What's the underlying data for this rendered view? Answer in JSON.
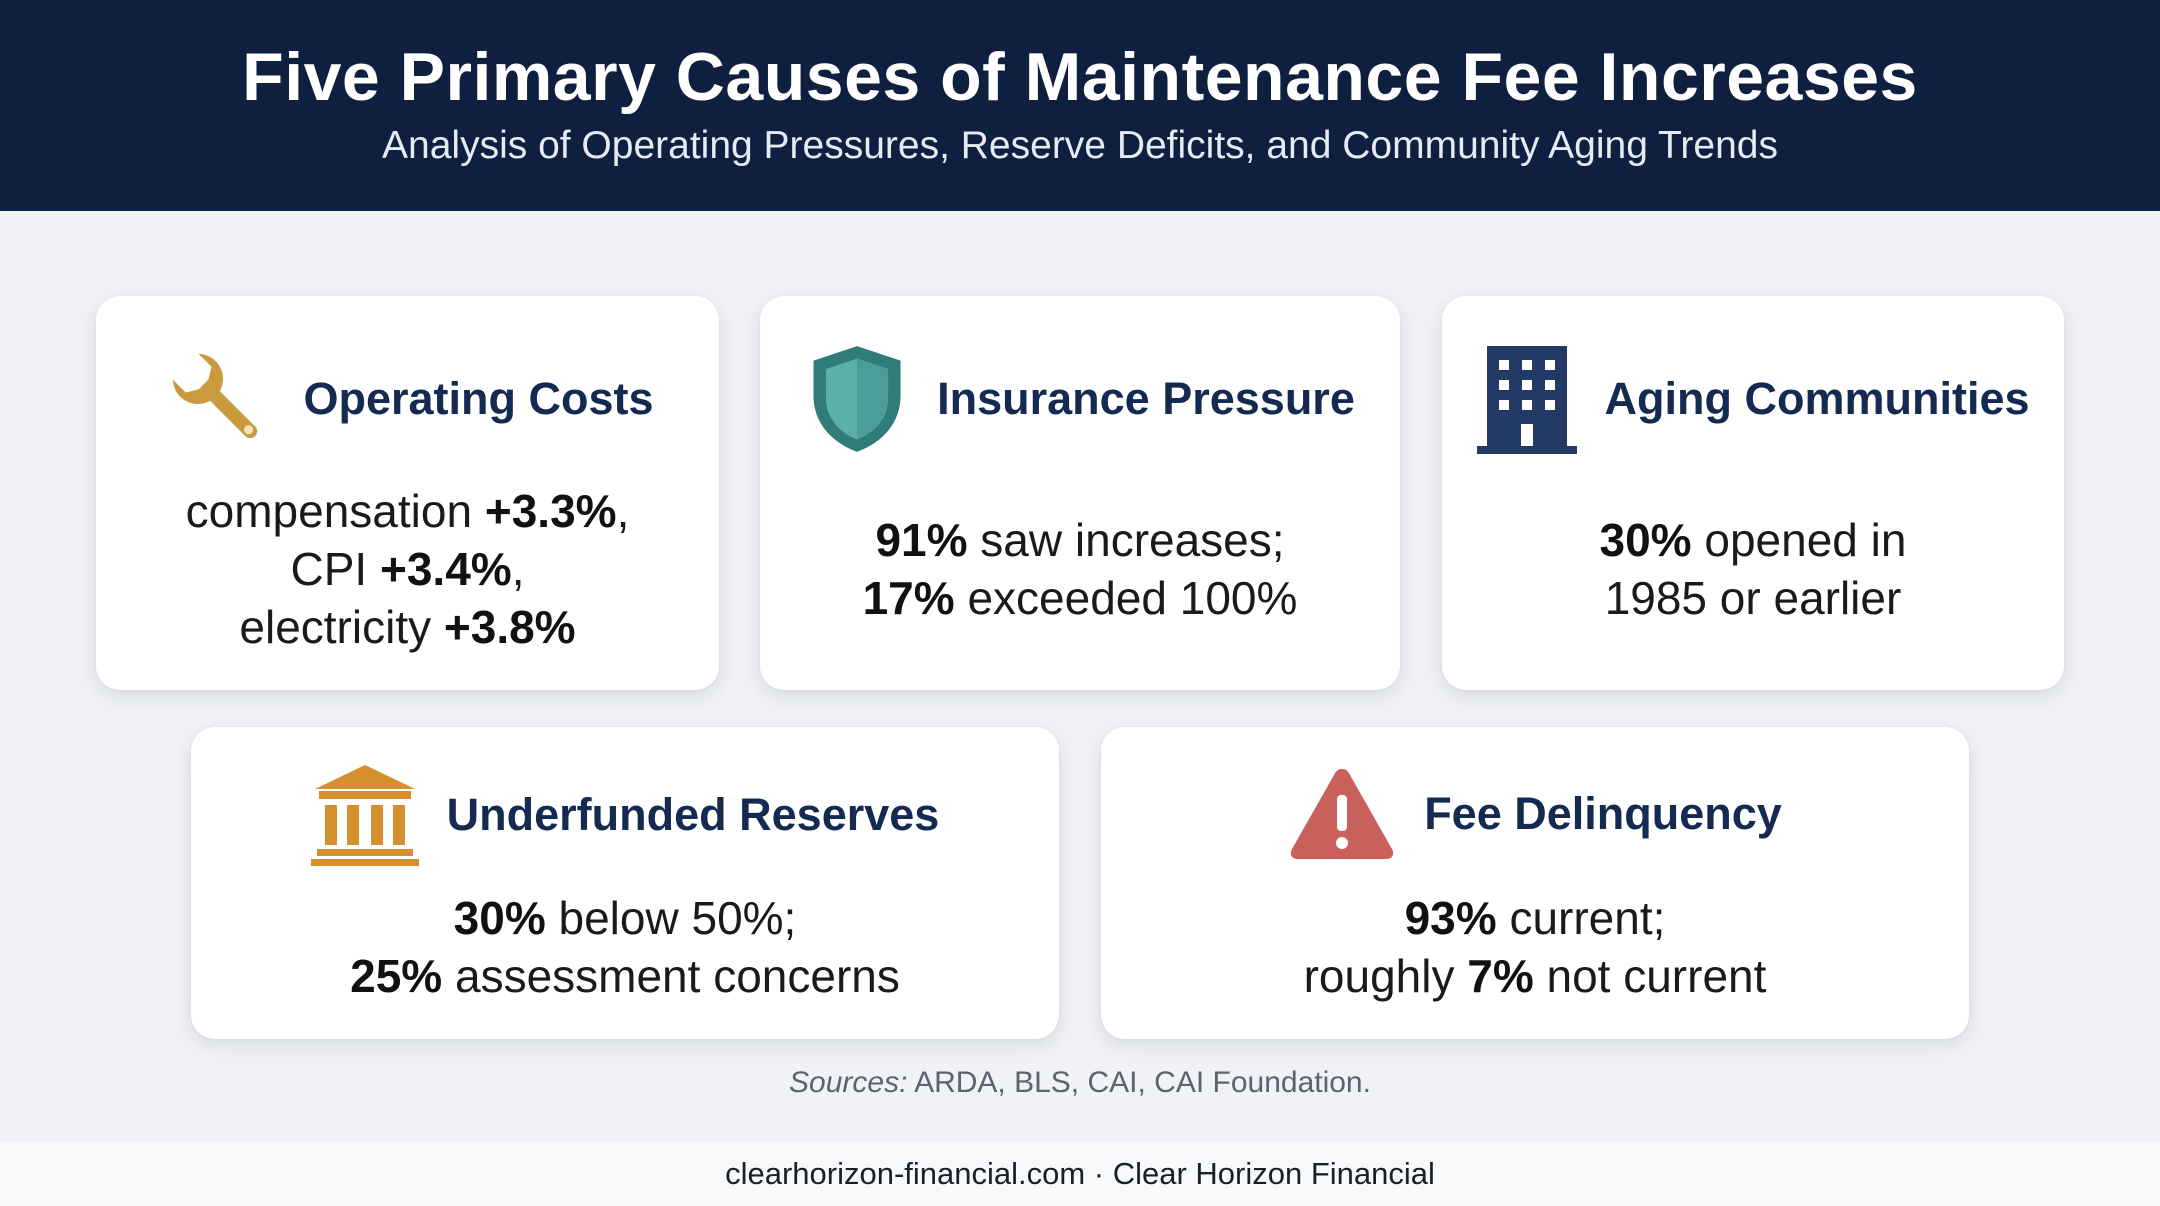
{
  "header": {
    "title": "Five Primary Causes of Maintenance Fee Increases",
    "subtitle": "Analysis of Operating Pressures, Reserve Deficits, and Community Aging Trends"
  },
  "cards": [
    {
      "icon": "wrench-icon",
      "title": "Operating Costs",
      "lines": [
        {
          "pre": "compensation ",
          "bold": "+3.3%",
          "post": ","
        },
        {
          "pre": "CPI ",
          "bold": "+3.4%",
          "post": ","
        },
        {
          "pre": "electricity ",
          "bold": "+3.8%",
          "post": ""
        }
      ]
    },
    {
      "icon": "shield-icon",
      "title": "Insurance Pressure",
      "lines": [
        {
          "pre": "",
          "bold": "91%",
          "post": " saw increases;"
        },
        {
          "pre": "",
          "bold": "17%",
          "post": " exceeded 100%"
        }
      ]
    },
    {
      "icon": "building-icon",
      "title": "Aging Communities",
      "lines": [
        {
          "pre": "",
          "bold": "30%",
          "post": " opened in"
        },
        {
          "pre": "1985 or earlier",
          "bold": "",
          "post": ""
        }
      ]
    },
    {
      "icon": "bank-icon",
      "title": "Underfunded Reserves",
      "lines": [
        {
          "pre": "",
          "bold": "30%",
          "post": " below 50%;"
        },
        {
          "pre": "",
          "bold": "25%",
          "post": " assessment concerns"
        }
      ]
    },
    {
      "icon": "warning-icon",
      "title": "Fee Delinquency",
      "lines": [
        {
          "pre": "",
          "bold": "93%",
          "post": " current;"
        },
        {
          "pre": "roughly ",
          "bold": "7%",
          "post": " not current"
        }
      ]
    }
  ],
  "sources": {
    "label": "Sources:",
    "text": " ARDA, BLS, CAI, CAI Foundation."
  },
  "footer": {
    "text": "clearhorizon-financial.com · Clear Horizon Financial"
  },
  "colors": {
    "header_bg": "#0f1f3f",
    "title_text": "#142a50",
    "wrench": "#c99a3e",
    "shield": "#3f8f8b",
    "building": "#243a66",
    "bank": "#d68f2f",
    "warning": "#c9605c"
  }
}
